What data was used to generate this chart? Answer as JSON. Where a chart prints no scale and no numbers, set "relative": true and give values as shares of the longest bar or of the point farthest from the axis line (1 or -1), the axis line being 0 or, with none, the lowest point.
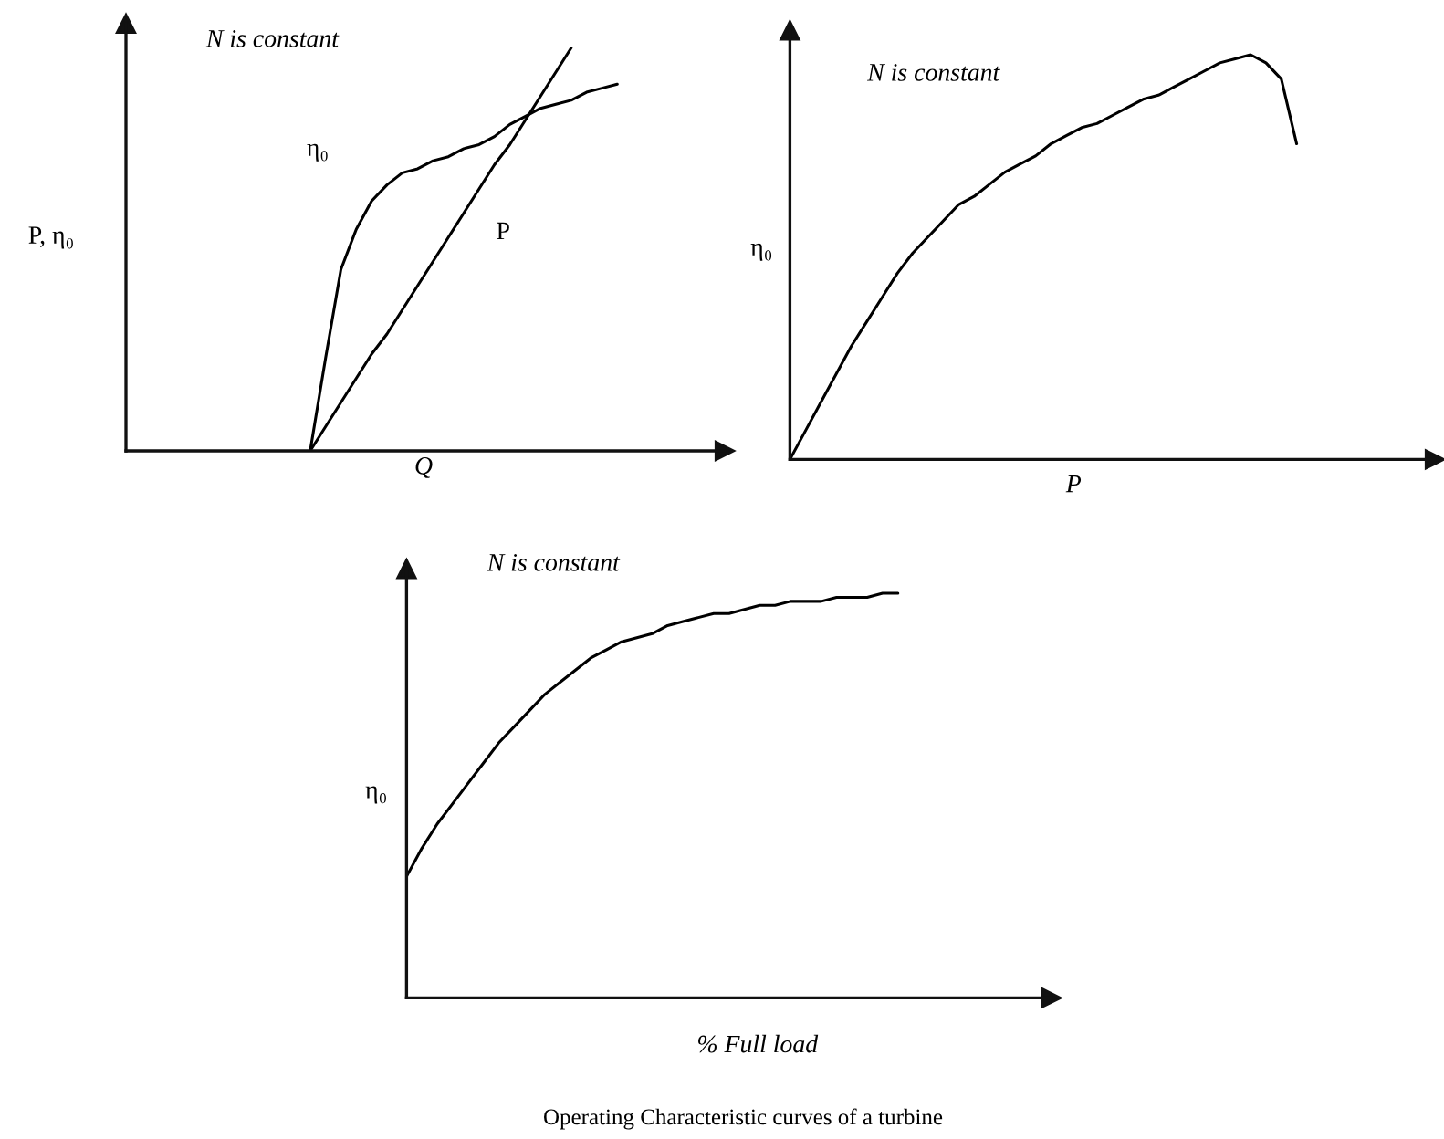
{
  "chart_data": [
    {
      "type": "line",
      "title": "N is constant",
      "xlabel": "Q",
      "ylabel": "P, η₀",
      "relative": true,
      "categories": [
        null,
        null,
        null,
        null,
        null,
        null,
        null,
        null,
        null,
        null,
        null,
        null,
        null,
        null,
        null,
        null,
        null,
        null,
        null,
        null,
        null,
        null,
        null,
        null,
        null,
        null,
        null,
        null,
        null,
        null,
        null,
        null,
        null,
        null,
        null,
        null,
        null,
        null,
        null,
        null
      ],
      "series": [
        {
          "name": "η₀",
          "color": "#000000",
          "values": [
            null,
            null,
            null,
            null,
            null,
            null,
            null,
            null,
            null,
            null,
            null,
            null,
            0,
            0.23,
            0.45,
            0.55,
            0.62,
            0.66,
            0.69,
            0.7,
            0.72,
            0.73,
            0.75,
            0.76,
            0.78,
            0.81,
            0.83,
            0.85,
            0.86,
            0.87,
            0.89,
            0.9,
            0.91,
            null,
            null,
            null,
            null,
            null,
            null,
            null
          ]
        },
        {
          "name": "P",
          "color": "#000000",
          "values": [
            null,
            null,
            null,
            null,
            null,
            null,
            null,
            null,
            null,
            null,
            null,
            null,
            0,
            0.06,
            0.12,
            0.18,
            0.24,
            0.29,
            0.35,
            0.41,
            0.47,
            0.53,
            0.59,
            0.65,
            0.71,
            0.76,
            0.82,
            0.88,
            0.94,
            1,
            null,
            null,
            null,
            null,
            null,
            null,
            null,
            null,
            null,
            null
          ]
        }
      ]
    },
    {
      "type": "line",
      "title": "N is constant",
      "xlabel": "P",
      "ylabel": "η₀",
      "relative": true,
      "categories": [
        null,
        null,
        null,
        null,
        null,
        null,
        null,
        null,
        null,
        null,
        null,
        null,
        null,
        null,
        null,
        null,
        null,
        null,
        null,
        null,
        null,
        null,
        null,
        null,
        null,
        null,
        null,
        null,
        null,
        null,
        null,
        null,
        null,
        null,
        null,
        null,
        null,
        null,
        null,
        null,
        null,
        null,
        null
      ],
      "series": [
        {
          "color": "#000000",
          "values": [
            0,
            0.07,
            0.14,
            0.21,
            0.28,
            0.34,
            0.4,
            0.46,
            0.51,
            0.55,
            0.59,
            0.63,
            0.65,
            0.68,
            0.71,
            0.73,
            0.75,
            0.78,
            0.8,
            0.82,
            0.83,
            0.85,
            0.87,
            0.89,
            0.9,
            0.92,
            0.94,
            0.96,
            0.98,
            0.99,
            1,
            0.98,
            0.94,
            0.78,
            null,
            null,
            null,
            null,
            null,
            null,
            null,
            null,
            null
          ]
        }
      ]
    },
    {
      "type": "line",
      "title": "N is constant",
      "xlabel": "% Full load",
      "ylabel": "η₀",
      "relative": true,
      "categories": [
        null,
        null,
        null,
        null,
        null,
        null,
        null,
        null,
        null,
        null,
        null,
        null,
        null,
        null,
        null,
        null,
        null,
        null,
        null,
        null,
        null,
        null,
        null,
        null,
        null,
        null,
        null,
        null,
        null,
        null,
        null,
        null,
        null,
        null,
        null,
        null,
        null,
        null,
        null,
        null,
        null,
        null,
        null
      ],
      "series": [
        {
          "color": "#000000",
          "values": [
            0.3,
            0.37,
            0.43,
            0.48,
            0.53,
            0.58,
            0.63,
            0.67,
            0.71,
            0.75,
            0.78,
            0.81,
            0.84,
            0.86,
            0.88,
            0.89,
            0.9,
            0.92,
            0.93,
            0.94,
            0.95,
            0.95,
            0.96,
            0.97,
            0.97,
            0.98,
            0.98,
            0.98,
            0.99,
            0.99,
            0.99,
            1.0,
            1.0,
            null,
            null,
            null,
            null,
            null,
            null,
            null,
            null,
            null,
            null
          ]
        }
      ],
      "annotations": [
        "Operating Characteristic curves of a turbine"
      ]
    }
  ]
}
